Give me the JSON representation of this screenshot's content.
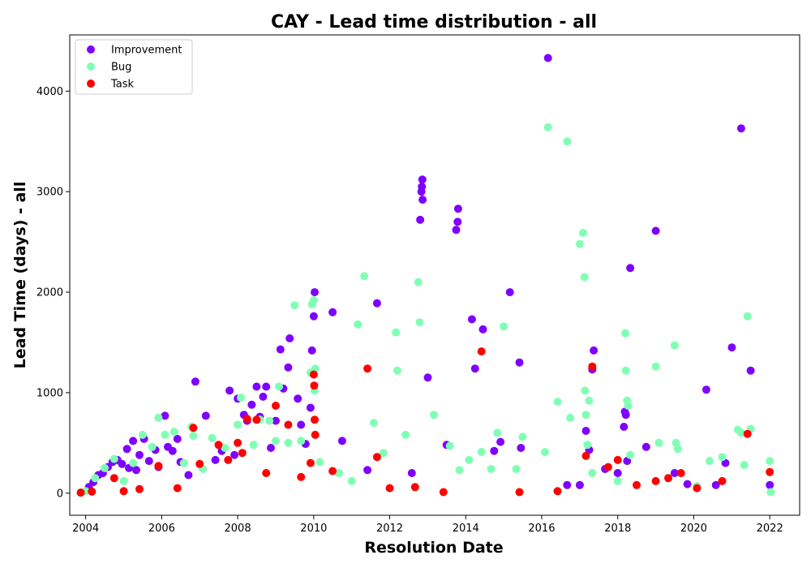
{
  "chart_data": {
    "type": "scatter",
    "title": "CAY - Lead time distribution - all",
    "xlabel": "Resolution Date",
    "ylabel": "Lead Time (days) - all",
    "xlim": [
      "2003-08-01",
      "2022-10-15"
    ],
    "ylim": [
      -220,
      4560
    ],
    "xticks": [
      "2004",
      "2006",
      "2008",
      "2010",
      "2012",
      "2014",
      "2016",
      "2018",
      "2020",
      "2022"
    ],
    "yticks": [
      "0",
      "1000",
      "2000",
      "3000",
      "4000"
    ],
    "grid": false,
    "legend_position": "top-left",
    "series": [
      {
        "name": "Improvement",
        "color": "#7f00ff",
        "points": [
          [
            "2003-11-15",
            5
          ],
          [
            "2004-02-01",
            60
          ],
          [
            "2004-03-15",
            110
          ],
          [
            "2004-05-01",
            180
          ],
          [
            "2004-06-15",
            200
          ],
          [
            "2004-08-01",
            260
          ],
          [
            "2004-09-15",
            310
          ],
          [
            "2004-11-01",
            330
          ],
          [
            "2004-12-15",
            290
          ],
          [
            "2005-02-01",
            440
          ],
          [
            "2005-02-20",
            250
          ],
          [
            "2005-04-01",
            520
          ],
          [
            "2005-05-01",
            230
          ],
          [
            "2005-06-01",
            380
          ],
          [
            "2005-07-15",
            540
          ],
          [
            "2005-09-01",
            320
          ],
          [
            "2005-11-01",
            430
          ],
          [
            "2005-12-01",
            260
          ],
          [
            "2006-02-01",
            770
          ],
          [
            "2006-03-01",
            460
          ],
          [
            "2006-04-15",
            420
          ],
          [
            "2006-06-01",
            540
          ],
          [
            "2006-07-01",
            310
          ],
          [
            "2006-09-15",
            180
          ],
          [
            "2006-11-20",
            1110
          ],
          [
            "2007-03-01",
            770
          ],
          [
            "2007-06-01",
            330
          ],
          [
            "2007-08-01",
            420
          ],
          [
            "2007-10-15",
            1020
          ],
          [
            "2007-12-01",
            380
          ],
          [
            "2008-01-01",
            940
          ],
          [
            "2008-03-01",
            780
          ],
          [
            "2008-04-01",
            720
          ],
          [
            "2008-05-15",
            880
          ],
          [
            "2008-07-01",
            1060
          ],
          [
            "2008-08-01",
            760
          ],
          [
            "2008-09-01",
            960
          ],
          [
            "2008-10-01",
            1060
          ],
          [
            "2008-11-15",
            450
          ],
          [
            "2009-01-01",
            720
          ],
          [
            "2009-02-15",
            1430
          ],
          [
            "2009-03-15",
            1040
          ],
          [
            "2009-05-01",
            1250
          ],
          [
            "2009-05-15",
            1540
          ],
          [
            "2009-08-01",
            940
          ],
          [
            "2009-09-01",
            680
          ],
          [
            "2009-10-15",
            490
          ],
          [
            "2009-12-01",
            850
          ],
          [
            "2009-12-15",
            1420
          ],
          [
            "2010-01-01",
            1760
          ],
          [
            "2010-01-10",
            2000
          ],
          [
            "2010-07-01",
            1800
          ],
          [
            "2010-10-01",
            520
          ],
          [
            "2011-06-01",
            230
          ],
          [
            "2011-09-01",
            1890
          ],
          [
            "2012-08-01",
            200
          ],
          [
            "2012-10-20",
            2720
          ],
          [
            "2012-11-01",
            3000
          ],
          [
            "2012-11-05",
            3050
          ],
          [
            "2012-11-10",
            3120
          ],
          [
            "2012-11-12",
            2920
          ],
          [
            "2013-01-01",
            1150
          ],
          [
            "2013-07-01",
            480
          ],
          [
            "2013-10-01",
            2620
          ],
          [
            "2013-10-15",
            2700
          ],
          [
            "2013-10-20",
            2830
          ],
          [
            "2014-03-01",
            1730
          ],
          [
            "2014-04-01",
            1240
          ],
          [
            "2014-06-15",
            1630
          ],
          [
            "2014-10-01",
            420
          ],
          [
            "2014-12-01",
            510
          ],
          [
            "2015-03-01",
            2000
          ],
          [
            "2015-06-01",
            1300
          ],
          [
            "2015-06-15",
            450
          ],
          [
            "2016-03-01",
            4330
          ],
          [
            "2016-09-01",
            80
          ],
          [
            "2017-01-01",
            80
          ],
          [
            "2017-03-01",
            620
          ],
          [
            "2017-04-01",
            430
          ],
          [
            "2017-05-01",
            1230
          ],
          [
            "2017-05-15",
            1420
          ],
          [
            "2017-09-01",
            240
          ],
          [
            "2018-01-01",
            200
          ],
          [
            "2018-03-01",
            660
          ],
          [
            "2018-03-10",
            810
          ],
          [
            "2018-03-20",
            780
          ],
          [
            "2018-04-01",
            320
          ],
          [
            "2018-05-01",
            2240
          ],
          [
            "2018-10-01",
            460
          ],
          [
            "2019-01-01",
            2610
          ],
          [
            "2019-07-01",
            200
          ],
          [
            "2019-11-01",
            90
          ],
          [
            "2020-05-01",
            1030
          ],
          [
            "2020-08-01",
            80
          ],
          [
            "2020-11-01",
            300
          ],
          [
            "2021-01-01",
            1450
          ],
          [
            "2021-04-01",
            3630
          ],
          [
            "2021-07-01",
            1220
          ],
          [
            "2022-01-01",
            80
          ]
        ]
      },
      {
        "name": "Bug",
        "color": "#80ffb4",
        "points": [
          [
            "2004-01-01",
            20
          ],
          [
            "2004-04-01",
            150
          ],
          [
            "2004-07-01",
            250
          ],
          [
            "2004-10-01",
            340
          ],
          [
            "2005-01-01",
            120
          ],
          [
            "2005-04-01",
            300
          ],
          [
            "2005-07-01",
            580
          ],
          [
            "2005-10-01",
            460
          ],
          [
            "2005-12-01",
            750
          ],
          [
            "2006-02-01",
            580
          ],
          [
            "2006-05-01",
            610
          ],
          [
            "2006-08-01",
            300
          ],
          [
            "2006-10-15",
            660
          ],
          [
            "2006-11-01",
            570
          ],
          [
            "2007-02-01",
            240
          ],
          [
            "2007-05-01",
            550
          ],
          [
            "2007-09-01",
            450
          ],
          [
            "2008-01-01",
            680
          ],
          [
            "2008-02-01",
            950
          ],
          [
            "2008-06-01",
            480
          ],
          [
            "2008-08-01",
            730
          ],
          [
            "2008-11-01",
            720
          ],
          [
            "2009-01-01",
            520
          ],
          [
            "2009-02-01",
            1060
          ],
          [
            "2009-05-01",
            500
          ],
          [
            "2009-07-01",
            1870
          ],
          [
            "2009-09-01",
            520
          ],
          [
            "2009-12-01",
            1200
          ],
          [
            "2009-12-15",
            1880
          ],
          [
            "2010-01-01",
            1920
          ],
          [
            "2010-01-10",
            1020
          ],
          [
            "2010-01-15",
            1240
          ],
          [
            "2010-03-01",
            310
          ],
          [
            "2010-09-01",
            200
          ],
          [
            "2011-01-01",
            120
          ],
          [
            "2011-03-01",
            1680
          ],
          [
            "2011-05-01",
            2160
          ],
          [
            "2011-08-01",
            700
          ],
          [
            "2011-11-01",
            400
          ],
          [
            "2012-03-01",
            1600
          ],
          [
            "2012-03-15",
            1220
          ],
          [
            "2012-06-01",
            580
          ],
          [
            "2012-10-01",
            2100
          ],
          [
            "2012-10-15",
            1700
          ],
          [
            "2013-03-01",
            780
          ],
          [
            "2013-08-01",
            470
          ],
          [
            "2013-11-01",
            230
          ],
          [
            "2014-02-01",
            330
          ],
          [
            "2014-06-01",
            410
          ],
          [
            "2014-09-01",
            240
          ],
          [
            "2014-11-01",
            600
          ],
          [
            "2015-01-01",
            1660
          ],
          [
            "2015-05-01",
            240
          ],
          [
            "2015-07-01",
            560
          ],
          [
            "2016-02-01",
            410
          ],
          [
            "2016-03-01",
            3640
          ],
          [
            "2016-06-01",
            910
          ],
          [
            "2016-09-01",
            3500
          ],
          [
            "2016-10-01",
            750
          ],
          [
            "2017-01-01",
            2480
          ],
          [
            "2017-02-01",
            2590
          ],
          [
            "2017-02-15",
            2150
          ],
          [
            "2017-02-20",
            1020
          ],
          [
            "2017-03-01",
            780
          ],
          [
            "2017-03-15",
            480
          ],
          [
            "2017-04-01",
            920
          ],
          [
            "2017-05-01",
            200
          ],
          [
            "2018-01-01",
            120
          ],
          [
            "2018-03-15",
            1590
          ],
          [
            "2018-03-20",
            1220
          ],
          [
            "2018-04-01",
            920
          ],
          [
            "2018-04-10",
            870
          ],
          [
            "2018-05-01",
            380
          ],
          [
            "2019-01-01",
            1260
          ],
          [
            "2019-02-01",
            500
          ],
          [
            "2019-07-01",
            1470
          ],
          [
            "2019-07-15",
            500
          ],
          [
            "2019-08-01",
            440
          ],
          [
            "2020-02-01",
            70
          ],
          [
            "2020-06-01",
            320
          ],
          [
            "2020-10-01",
            360
          ],
          [
            "2021-03-01",
            630
          ],
          [
            "2021-04-01",
            600
          ],
          [
            "2021-05-01",
            280
          ],
          [
            "2021-06-01",
            1760
          ],
          [
            "2021-07-01",
            640
          ],
          [
            "2022-01-01",
            320
          ],
          [
            "2022-01-10",
            10
          ]
        ]
      },
      {
        "name": "Task",
        "color": "#ff0000",
        "points": [
          [
            "2003-11-15",
            5
          ],
          [
            "2004-03-01",
            15
          ],
          [
            "2004-10-01",
            150
          ],
          [
            "2005-01-01",
            20
          ],
          [
            "2005-06-01",
            40
          ],
          [
            "2005-12-01",
            270
          ],
          [
            "2006-06-01",
            50
          ],
          [
            "2006-11-01",
            650
          ],
          [
            "2007-01-01",
            290
          ],
          [
            "2007-07-01",
            480
          ],
          [
            "2007-10-01",
            330
          ],
          [
            "2008-01-01",
            500
          ],
          [
            "2008-02-15",
            400
          ],
          [
            "2008-04-01",
            740
          ],
          [
            "2008-07-01",
            730
          ],
          [
            "2008-10-01",
            200
          ],
          [
            "2009-01-01",
            870
          ],
          [
            "2009-05-01",
            680
          ],
          [
            "2009-09-01",
            160
          ],
          [
            "2009-12-01",
            300
          ],
          [
            "2010-01-01",
            1180
          ],
          [
            "2010-01-05",
            1070
          ],
          [
            "2010-01-10",
            730
          ],
          [
            "2010-01-15",
            580
          ],
          [
            "2010-07-01",
            220
          ],
          [
            "2011-06-01",
            1240
          ],
          [
            "2011-09-01",
            360
          ],
          [
            "2012-01-01",
            50
          ],
          [
            "2012-09-01",
            60
          ],
          [
            "2013-06-01",
            10
          ],
          [
            "2014-06-01",
            1410
          ],
          [
            "2015-06-01",
            10
          ],
          [
            "2016-06-01",
            20
          ],
          [
            "2017-03-01",
            370
          ],
          [
            "2017-05-01",
            1260
          ],
          [
            "2017-10-01",
            260
          ],
          [
            "2018-01-01",
            330
          ],
          [
            "2018-07-01",
            80
          ],
          [
            "2019-01-01",
            120
          ],
          [
            "2019-05-01",
            150
          ],
          [
            "2019-09-01",
            200
          ],
          [
            "2020-02-01",
            50
          ],
          [
            "2020-10-01",
            120
          ],
          [
            "2021-06-01",
            590
          ],
          [
            "2022-01-01",
            210
          ]
        ]
      }
    ]
  }
}
